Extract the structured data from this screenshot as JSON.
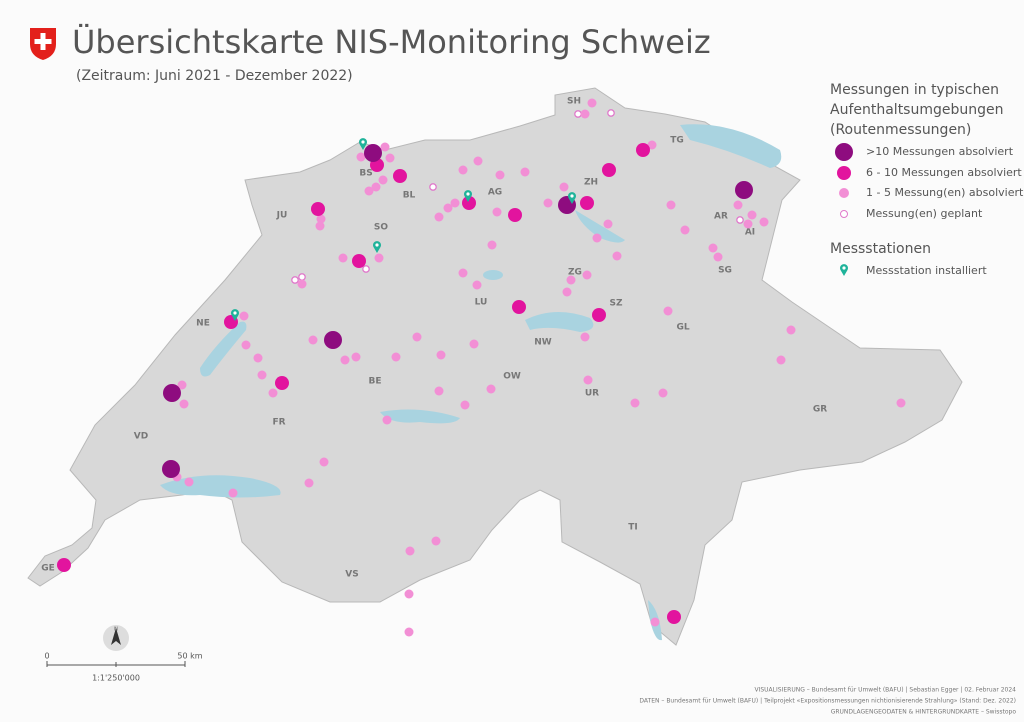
{
  "header": {
    "title": "Übersichtskarte NIS-Monitoring Schweiz",
    "subtitle": "(Zeitraum: Juni 2021 - Dezember 2022)"
  },
  "legend": {
    "routes": {
      "title_lines": [
        "Messungen in typischen",
        "Aufenthaltsumgebungen",
        "(Routenmessungen)"
      ],
      "items": [
        ">10 Messungen absolviert",
        "6 - 10 Messungen absolviert",
        "1 - 5 Messung(en) absolviert",
        "Messung(en) geplant"
      ]
    },
    "stations": {
      "title": "Messstationen",
      "items": [
        "Messstation installiert"
      ]
    }
  },
  "cantons": [
    "SH",
    "TG",
    "BS",
    "BL",
    "ZH",
    "AG",
    "JU",
    "SO",
    "AR",
    "AI",
    "SG",
    "ZG",
    "LU",
    "SZ",
    "NE",
    "NW",
    "GL",
    "OW",
    "BE",
    "UR",
    "FR",
    "GR",
    "VD",
    "TI",
    "GE",
    "VS"
  ],
  "scale": {
    "zero": "0",
    "distance": "50 km",
    "ratio": "1:1'250'000",
    "north": "N"
  },
  "credits": [
    "VISUALISIERUNG – Bundesamt für Umwelt (BAFU) | Sebastian Egger | 02. Februar 2024",
    "DATEN – Bundesamt für Umwelt (BAFU)  | Teilprojekt «Expositionsmessungen nichtionisierende Strahlung» (Stand: Dez. 2022)",
    "GRUNDLAGENGEODATEN & HINTERGRUNDKARTE – Swisstopo"
  ]
}
